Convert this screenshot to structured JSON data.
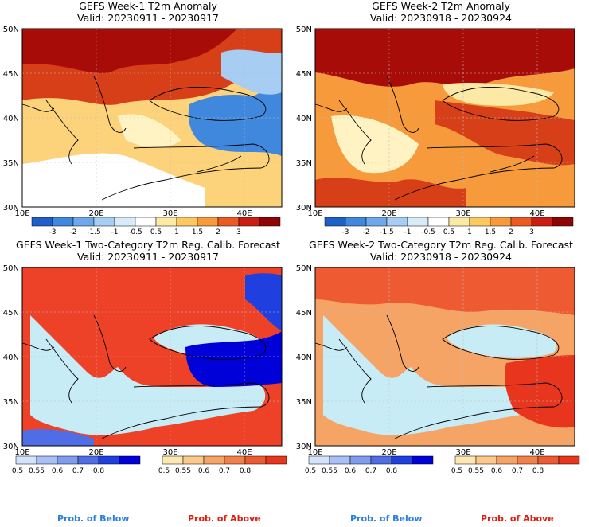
{
  "panels": [
    {
      "title": "GEFS Week-1 T2m Anomaly",
      "valid": "Valid: 20230911 - 20230917"
    },
    {
      "title": "GEFS Week-2 T2m Anomaly",
      "valid": "Valid: 20230918 - 20230924"
    },
    {
      "title": "GEFS Week-1 Two-Category T2m Reg. Calib. Forecast",
      "valid": "Valid: 20230911 - 20230917"
    },
    {
      "title": "GEFS Week-2 Two-Category T2m Reg. Calib. Forecast",
      "valid": "Valid: 20230918 - 20230924"
    }
  ],
  "axes": {
    "lat_labels": [
      "50N",
      "45N",
      "40N",
      "35N",
      "30N"
    ],
    "lon_labels": [
      "10E",
      "20E",
      "30E",
      "40E"
    ]
  },
  "anomaly_colorbar": {
    "labels": [
      "-3",
      "-2",
      "-1.5",
      "-1",
      "-0.5",
      "0.5",
      "1",
      "1.5",
      "2",
      "3"
    ],
    "colors": [
      "#1f5fc8",
      "#3f88dd",
      "#6fa8ea",
      "#a8cdf2",
      "#d8ebf8",
      "#ffffff",
      "#fde9a6",
      "#fcc860",
      "#f69a3c",
      "#ea5a23",
      "#cc1d14",
      "#8e0505"
    ]
  },
  "probability_colorbars": {
    "below": {
      "labels": [
        "0.5",
        "0.55",
        "0.6",
        "0.7",
        "0.8"
      ],
      "colors": [
        "#d4e2fb",
        "#a8c0f5",
        "#7f9cee",
        "#4f6ee6",
        "#1f3fde",
        "#0000d8"
      ]
    },
    "above": {
      "labels": [
        "0.5",
        "0.55",
        "0.6",
        "0.7",
        "0.8"
      ],
      "colors": [
        "#fde8b4",
        "#fbc98a",
        "#f6a466",
        "#f2804a",
        "#ee5a32",
        "#e8361e"
      ]
    }
  },
  "footer": {
    "below": "Prob. of Below",
    "above": "Prob. of Above",
    "below_color": "#2a7fe0",
    "above_color": "#e01e10"
  },
  "map_colors": {
    "sea_ice": "#c8ecf5",
    "outline": "#000000"
  }
}
